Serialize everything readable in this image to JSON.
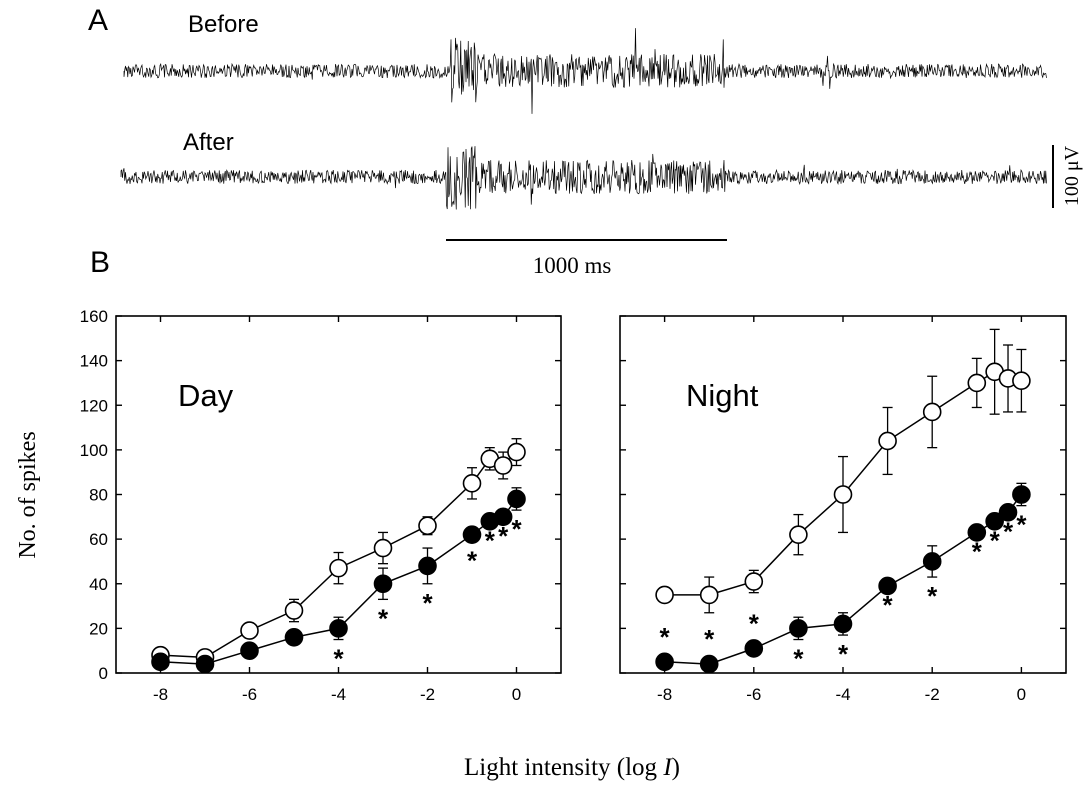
{
  "panel_a": {
    "letter": "A",
    "trace_before_label": "Before",
    "trace_after_label": "After",
    "time_scale_label": "1000 ms",
    "amp_scale_label": "100 μV"
  },
  "panel_b": {
    "letter": "B",
    "xlabel": "Light intensity (log I)",
    "xlabel_prefix": "Light intensity (log ",
    "xlabel_var": "I",
    "xlabel_suffix": ")",
    "ylabel": "No. of spikes"
  },
  "chart_data": [
    {
      "type": "line",
      "title": "Day",
      "xlabel": "Light intensity (log I)",
      "ylabel": "No. of spikes",
      "xlim": [
        -9,
        1
      ],
      "ylim": [
        0,
        160
      ],
      "xticks": [
        -8,
        -6,
        -4,
        -2,
        0
      ],
      "yticks": [
        0,
        20,
        40,
        60,
        80,
        100,
        120,
        140,
        160
      ],
      "grid": false,
      "legend": "none",
      "series": [
        {
          "marker": "open-circle",
          "x": [
            -8,
            -7,
            -6,
            -5,
            -4,
            -3,
            -2,
            -1,
            -0.6,
            -0.3,
            0
          ],
          "y": [
            8,
            7,
            19,
            28,
            47,
            56,
            66,
            85,
            96,
            93,
            99
          ],
          "err": [
            0,
            0,
            0,
            5,
            7,
            7,
            4,
            7,
            5,
            6,
            6
          ]
        },
        {
          "marker": "filled-circle",
          "x": [
            -8,
            -7,
            -6,
            -5,
            -4,
            -3,
            -2,
            -1,
            -0.6,
            -0.3,
            0
          ],
          "y": [
            5,
            4,
            10,
            16,
            20,
            40,
            48,
            62,
            68,
            70,
            78
          ],
          "err": [
            0,
            0,
            0,
            0,
            5,
            7,
            8,
            3,
            0,
            0,
            5
          ],
          "significance_marks": [
            "",
            "",
            "",
            "",
            "*",
            "*",
            "*",
            "*",
            "*",
            "*",
            "*"
          ]
        }
      ]
    },
    {
      "type": "line",
      "title": "Night",
      "xlabel": "Light intensity (log I)",
      "ylim": [
        0,
        160
      ],
      "xlim": [
        -9,
        1
      ],
      "xticks": [
        -8,
        -6,
        -4,
        -2,
        0
      ],
      "grid": false,
      "legend": "none",
      "series": [
        {
          "marker": "open-circle",
          "x": [
            -8,
            -7,
            -6,
            -5,
            -4,
            -3,
            -2,
            -1,
            -0.6,
            -0.3,
            0
          ],
          "y": [
            35,
            35,
            41,
            62,
            80,
            104,
            117,
            130,
            135,
            132,
            131
          ],
          "err": [
            0,
            8,
            5,
            9,
            17,
            15,
            16,
            11,
            19,
            15,
            14
          ]
        },
        {
          "marker": "filled-circle",
          "x": [
            -8,
            -7,
            -6,
            -5,
            -4,
            -3,
            -2,
            -1,
            -0.6,
            -0.3,
            0
          ],
          "y": [
            5,
            4,
            11,
            20,
            22,
            39,
            50,
            63,
            68,
            72,
            80
          ],
          "err": [
            0,
            0,
            0,
            5,
            5,
            0,
            7,
            0,
            0,
            0,
            5
          ],
          "significance_marks": [
            "*",
            "*",
            "*",
            "*",
            "*",
            "*",
            "*",
            "*",
            "*",
            "*",
            "*"
          ]
        }
      ]
    }
  ]
}
